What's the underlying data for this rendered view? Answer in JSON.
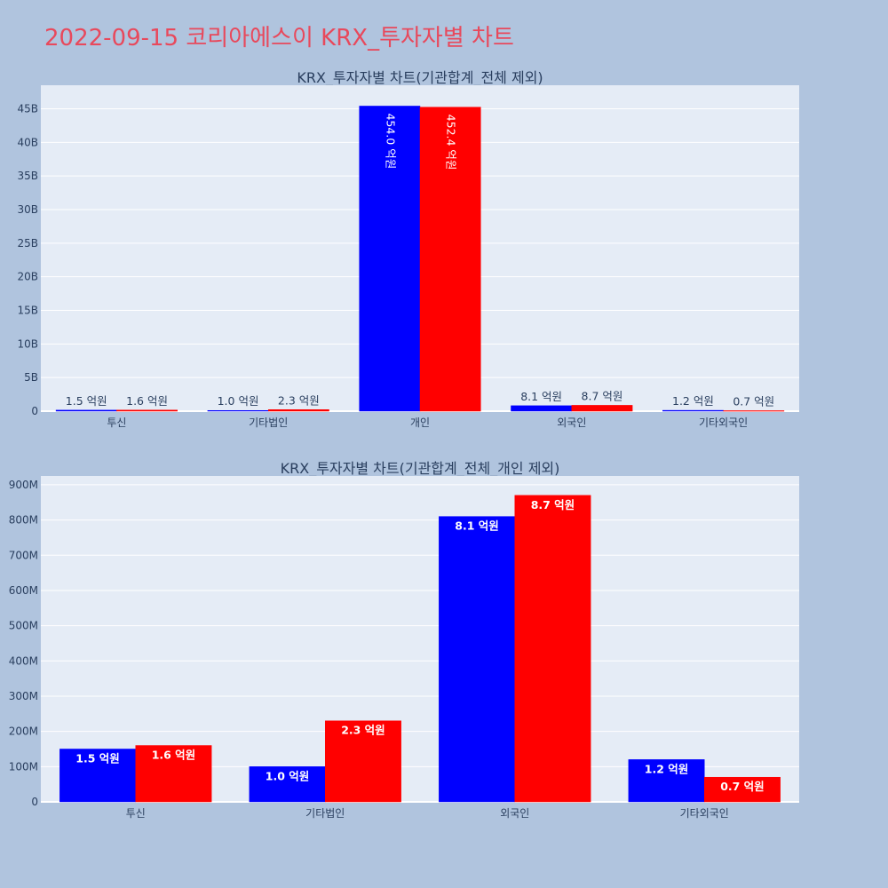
{
  "page": {
    "title": "2022-09-15 코리아에스이 KRX_투자자별 차트"
  },
  "colors": {
    "series_a": "#0000ff",
    "series_b": "#ff0000",
    "plot_bg": "#e5ecf6",
    "page_bg": "#b0c4de",
    "title": "#e8495c"
  },
  "chart_data": [
    {
      "type": "bar",
      "title": "KRX_투자자별 차트(기관합계_전체 제외)",
      "categories": [
        "투신",
        "기타법인",
        "개인",
        "외국인",
        "기타외국인"
      ],
      "series": [
        {
          "values": [
            150000000,
            100000000,
            45400000000,
            810000000,
            120000000
          ],
          "labels": [
            "1.5 억원",
            "1.0 억원",
            "454.0 억원",
            "8.1 억원",
            "1.2 억원"
          ]
        },
        {
          "values": [
            160000000,
            230000000,
            45240000000,
            870000000,
            70000000
          ],
          "labels": [
            "1.6 억원",
            "2.3 억원",
            "452.4 억원",
            "8.7 억원",
            "0.7 억원"
          ]
        }
      ],
      "ylim": [
        0,
        48500000000
      ],
      "yticks": [
        0,
        5000000000,
        10000000000,
        15000000000,
        20000000000,
        25000000000,
        30000000000,
        35000000000,
        40000000000,
        45000000000
      ],
      "ytick_labels": [
        "0",
        "5B",
        "10B",
        "15B",
        "20B",
        "25B",
        "30B",
        "35B",
        "40B",
        "45B"
      ],
      "grid": true
    },
    {
      "type": "bar",
      "title": "KRX_투자자별 차트(기관합계_전체_개인 제외)",
      "categories": [
        "투신",
        "기타법인",
        "외국인",
        "기타외국인"
      ],
      "series": [
        {
          "values": [
            150000000,
            100000000,
            810000000,
            120000000
          ],
          "labels": [
            "1.5 억원",
            "1.0 억원",
            "8.1 억원",
            "1.2 억원"
          ]
        },
        {
          "values": [
            160000000,
            230000000,
            870000000,
            70000000
          ],
          "labels": [
            "1.6 억원",
            "2.3 억원",
            "8.7 억원",
            "0.7 억원"
          ]
        }
      ],
      "ylim": [
        0,
        925000000
      ],
      "yticks": [
        0,
        100000000,
        200000000,
        300000000,
        400000000,
        500000000,
        600000000,
        700000000,
        800000000,
        900000000
      ],
      "ytick_labels": [
        "0",
        "100M",
        "200M",
        "300M",
        "400M",
        "500M",
        "600M",
        "700M",
        "800M",
        "900M"
      ],
      "grid": true
    }
  ]
}
